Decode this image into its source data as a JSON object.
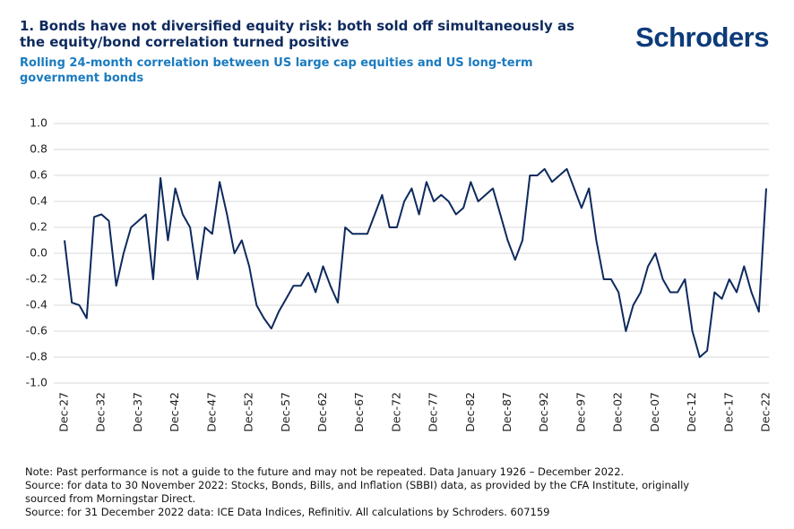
{
  "chart_data": {
    "type": "line",
    "title": "1.  Bonds have not diversified equity risk: both sold off simultaneously as the equity/bond correlation turned positive",
    "subtitle": "Rolling 24-month correlation between US large cap equities and US long-term government bonds",
    "logo": "Schroders",
    "notes": [
      "Note: Past performance is not a guide to the future and may not be repeated. Data January 1926 – December 2022.",
      "Source: for data to 30 November 2022: Stocks, Bonds, Bills, and Inflation (SBBI) data, as provided by the CFA Institute, originally sourced from Morningstar Direct.",
      "Source: for 31 December 2022 data: ICE Data Indices, Refinitiv. All calculations by Schroders. 607159"
    ],
    "categories": [
      "Dec-27",
      null,
      null,
      null,
      null,
      "Dec-32",
      null,
      null,
      null,
      null,
      "Dec-37",
      null,
      null,
      null,
      null,
      "Dec-42",
      null,
      null,
      null,
      null,
      "Dec-47",
      null,
      null,
      null,
      null,
      "Dec-52",
      null,
      null,
      null,
      null,
      "Dec-57",
      null,
      null,
      null,
      null,
      "Dec-62",
      null,
      null,
      null,
      null,
      "Dec-67",
      null,
      null,
      null,
      null,
      "Dec-72",
      null,
      null,
      null,
      null,
      "Dec-77",
      null,
      null,
      null,
      null,
      "Dec-82",
      null,
      null,
      null,
      null,
      "Dec-87",
      null,
      null,
      null,
      null,
      "Dec-92",
      null,
      null,
      null,
      null,
      "Dec-97",
      null,
      null,
      null,
      null,
      "Dec-02",
      null,
      null,
      null,
      null,
      "Dec-07",
      null,
      null,
      null,
      null,
      "Dec-12",
      null,
      null,
      null,
      null,
      "Dec-17",
      null,
      null,
      null,
      null,
      "Dec-22"
    ],
    "values": [
      0.1,
      -0.38,
      -0.4,
      -0.5,
      0.28,
      0.3,
      0.25,
      -0.25,
      0.0,
      0.2,
      0.25,
      0.3,
      -0.2,
      0.58,
      0.1,
      0.5,
      0.3,
      0.2,
      -0.2,
      0.2,
      0.15,
      0.55,
      0.3,
      0.0,
      0.1,
      -0.1,
      -0.4,
      -0.5,
      -0.58,
      -0.45,
      -0.35,
      -0.25,
      -0.25,
      -0.15,
      -0.3,
      -0.1,
      -0.25,
      -0.38,
      0.2,
      0.15,
      0.15,
      0.15,
      0.3,
      0.45,
      0.2,
      0.2,
      0.4,
      0.5,
      0.3,
      0.55,
      0.4,
      0.45,
      0.4,
      0.3,
      0.35,
      0.55,
      0.4,
      0.45,
      0.5,
      0.3,
      0.1,
      -0.05,
      0.1,
      0.6,
      0.6,
      0.65,
      0.55,
      0.6,
      0.65,
      0.5,
      0.35,
      0.5,
      0.1,
      -0.2,
      -0.2,
      -0.3,
      -0.6,
      -0.4,
      -0.3,
      -0.1,
      0.0,
      -0.2,
      -0.3,
      -0.3,
      -0.2,
      -0.6,
      -0.8,
      -0.75,
      -0.3,
      -0.35,
      -0.2,
      -0.3,
      -0.1,
      -0.3,
      -0.45,
      0.5
    ],
    "color": "#0d2a5e",
    "ylim": [
      -1,
      1
    ],
    "yticks": [
      {
        "value": -1,
        "label": "-1.0"
      },
      -0.8,
      -0.6,
      -0.4,
      -0.2,
      {
        "value": 0,
        "label": "0.0"
      },
      0.2,
      0.4,
      0.6,
      0.8,
      {
        "value": 1,
        "label": "1.0"
      }
    ],
    "grid": true
  }
}
